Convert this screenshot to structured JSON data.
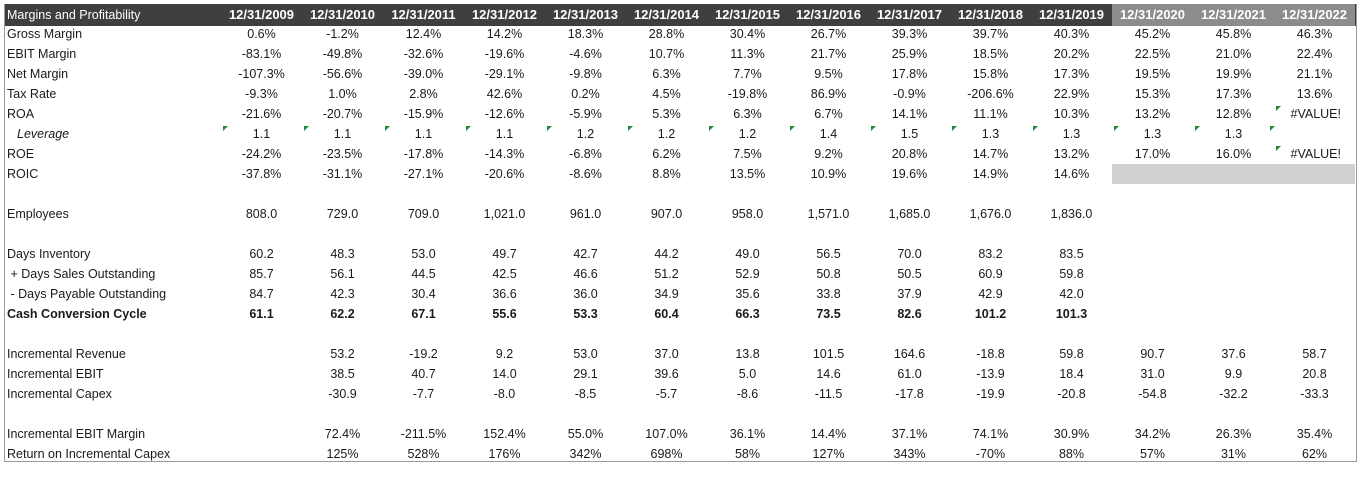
{
  "header": {
    "title": "Margins and Profitability",
    "years": [
      "12/31/2009",
      "12/31/2010",
      "12/31/2011",
      "12/31/2012",
      "12/31/2013",
      "12/31/2014",
      "12/31/2015",
      "12/31/2016",
      "12/31/2017",
      "12/31/2018",
      "12/31/2019",
      "12/31/2020",
      "12/31/2021",
      "12/31/2022"
    ],
    "projected_from_index": 11
  },
  "colors": {
    "header_bg": "#3f3f3f",
    "projected_header_bg": "#8c8c8c",
    "projected_cell_bg": "#d0d0d0",
    "flag_green": "#1e8a3a"
  },
  "rows": [
    {
      "label": "Gross Margin",
      "values": [
        "0.6%",
        "-1.2%",
        "12.4%",
        "14.2%",
        "18.3%",
        "28.8%",
        "30.4%",
        "26.7%",
        "39.3%",
        "39.7%",
        "40.3%",
        "45.2%",
        "45.8%",
        "46.3%"
      ]
    },
    {
      "label": "EBIT Margin",
      "values": [
        "-83.1%",
        "-49.8%",
        "-32.6%",
        "-19.6%",
        "-4.6%",
        "10.7%",
        "11.3%",
        "21.7%",
        "25.9%",
        "18.5%",
        "20.2%",
        "22.5%",
        "21.0%",
        "22.4%"
      ]
    },
    {
      "label": "Net Margin",
      "values": [
        "-107.3%",
        "-56.6%",
        "-39.0%",
        "-29.1%",
        "-9.8%",
        "6.3%",
        "7.7%",
        "9.5%",
        "17.8%",
        "15.8%",
        "17.3%",
        "19.5%",
        "19.9%",
        "21.1%"
      ]
    },
    {
      "label": "Tax Rate",
      "values": [
        "-9.3%",
        "1.0%",
        "2.8%",
        "42.6%",
        "0.2%",
        "4.5%",
        "-19.8%",
        "86.9%",
        "-0.9%",
        "-206.6%",
        "22.9%",
        "15.3%",
        "17.3%",
        "13.6%"
      ]
    },
    {
      "label": "ROA",
      "values": [
        "-21.6%",
        "-20.7%",
        "-15.9%",
        "-12.6%",
        "-5.9%",
        "5.3%",
        "6.3%",
        "6.7%",
        "14.1%",
        "11.1%",
        "10.3%",
        "13.2%",
        "12.8%",
        "#VALUE!"
      ]
    },
    {
      "label": "Leverage",
      "style": "italic indent",
      "values": [
        "1.1",
        "1.1",
        "1.1",
        "1.1",
        "1.2",
        "1.2",
        "1.2",
        "1.4",
        "1.5",
        "1.3",
        "1.3",
        "1.3",
        "1.3",
        ""
      ]
    },
    {
      "label": "ROE",
      "values": [
        "-24.2%",
        "-23.5%",
        "-17.8%",
        "-14.3%",
        "-6.8%",
        "6.2%",
        "7.5%",
        "9.2%",
        "20.8%",
        "14.7%",
        "13.2%",
        "17.0%",
        "16.0%",
        "#VALUE!"
      ]
    },
    {
      "label": "ROIC",
      "values": [
        "-37.8%",
        "-31.1%",
        "-27.1%",
        "-20.6%",
        "-8.6%",
        "8.8%",
        "13.5%",
        "10.9%",
        "19.6%",
        "14.9%",
        "14.6%",
        "",
        "",
        ""
      ],
      "gray_projected": true
    },
    {
      "label": "",
      "values": []
    },
    {
      "label": "Employees",
      "values": [
        "808.0",
        "729.0",
        "709.0",
        "1,021.0",
        "961.0",
        "907.0",
        "958.0",
        "1,571.0",
        "1,685.0",
        "1,676.0",
        "1,836.0",
        "",
        "",
        ""
      ]
    },
    {
      "label": "",
      "values": []
    },
    {
      "label": "Days Inventory",
      "values": [
        "60.2",
        "48.3",
        "53.0",
        "49.7",
        "42.7",
        "44.2",
        "49.0",
        "56.5",
        "70.0",
        "83.2",
        "83.5",
        "",
        "",
        ""
      ]
    },
    {
      "label": " + Days Sales Outstanding",
      "values": [
        "85.7",
        "56.1",
        "44.5",
        "42.5",
        "46.6",
        "51.2",
        "52.9",
        "50.8",
        "50.5",
        "60.9",
        "59.8",
        "",
        "",
        ""
      ]
    },
    {
      "label": " - Days Payable Outstanding",
      "values": [
        "84.7",
        "42.3",
        "30.4",
        "36.6",
        "36.0",
        "34.9",
        "35.6",
        "33.8",
        "37.9",
        "42.9",
        "42.0",
        "",
        "",
        ""
      ]
    },
    {
      "label": "Cash Conversion Cycle",
      "style": "bold",
      "values": [
        "61.1",
        "62.2",
        "67.1",
        "55.6",
        "53.3",
        "60.4",
        "66.3",
        "73.5",
        "82.6",
        "101.2",
        "101.3",
        "",
        "",
        ""
      ]
    },
    {
      "label": "",
      "values": []
    },
    {
      "label": "Incremental Revenue",
      "values": [
        "",
        "53.2",
        "-19.2",
        "9.2",
        "53.0",
        "37.0",
        "13.8",
        "101.5",
        "164.6",
        "-18.8",
        "59.8",
        "90.7",
        "37.6",
        "58.7"
      ]
    },
    {
      "label": "Incremental EBIT",
      "values": [
        "",
        "38.5",
        "40.7",
        "14.0",
        "29.1",
        "39.6",
        "5.0",
        "14.6",
        "61.0",
        "-13.9",
        "18.4",
        "31.0",
        "9.9",
        "20.8"
      ]
    },
    {
      "label": "Incremental Capex",
      "values": [
        "",
        "-30.9",
        "-7.7",
        "-8.0",
        "-8.5",
        "-5.7",
        "-8.6",
        "-11.5",
        "-17.8",
        "-19.9",
        "-20.8",
        "-54.8",
        "-32.2",
        "-33.3"
      ]
    },
    {
      "label": "",
      "values": []
    },
    {
      "label": "Incremental EBIT Margin",
      "values": [
        "",
        "72.4%",
        "-211.5%",
        "152.4%",
        "55.0%",
        "107.0%",
        "36.1%",
        "14.4%",
        "37.1%",
        "74.1%",
        "30.9%",
        "34.2%",
        "26.3%",
        "35.4%"
      ]
    },
    {
      "label": "Return on Incremental Capex",
      "values": [
        "",
        "125%",
        "528%",
        "176%",
        "342%",
        "698%",
        "58%",
        "127%",
        "343%",
        "-70%",
        "88%",
        "57%",
        "31%",
        "62%"
      ]
    }
  ]
}
